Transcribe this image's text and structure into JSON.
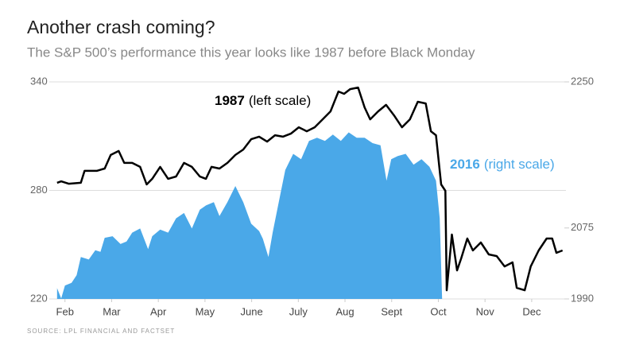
{
  "chart_data": {
    "type": "line",
    "title": "Another crash coming?",
    "subtitle": "The S&P 500’s performance this year looks like 1987 before Black Monday",
    "source": "SOURCE: LPL FINANCIAL AND FACTSET",
    "xlim": [
      0.8,
      11.7
    ],
    "xticks": [
      {
        "value": 1,
        "label": "Feb"
      },
      {
        "value": 2,
        "label": "Mar"
      },
      {
        "value": 3,
        "label": "Apr"
      },
      {
        "value": 4,
        "label": "May"
      },
      {
        "value": 5,
        "label": "June"
      },
      {
        "value": 6,
        "label": "July"
      },
      {
        "value": 7,
        "label": "Aug"
      },
      {
        "value": 8,
        "label": "Sept"
      },
      {
        "value": 9,
        "label": "Oct"
      },
      {
        "value": 10,
        "label": "Nov"
      },
      {
        "value": 11,
        "label": "Dec"
      }
    ],
    "ylim": [
      220,
      340
    ],
    "yticks": [
      220,
      280,
      340
    ],
    "y2lim": [
      1990,
      2250
    ],
    "y2ticks": [
      1990,
      2075,
      2250
    ],
    "grid": true,
    "series": [
      {
        "name": "2016",
        "annotation": "(right scale)",
        "color": "#4aa8e8",
        "axis": "y2",
        "fill": true,
        "x": [
          0.83,
          0.92,
          1.0,
          1.14,
          1.25,
          1.34,
          1.51,
          1.65,
          1.76,
          1.85,
          2.02,
          2.19,
          2.32,
          2.44,
          2.61,
          2.78,
          2.87,
          3.04,
          3.21,
          3.38,
          3.55,
          3.72,
          3.89,
          4.02,
          4.19,
          4.31,
          4.48,
          4.65,
          4.82,
          4.99,
          5.16,
          5.24,
          5.36,
          5.45,
          5.58,
          5.72,
          5.89,
          6.06,
          6.23,
          6.4,
          6.57,
          6.74,
          6.91,
          7.08,
          7.25,
          7.42,
          7.59,
          7.76,
          7.89,
          7.99,
          8.13,
          8.3,
          8.47,
          8.64,
          8.81,
          8.95,
          9.03,
          9.08
        ],
        "values": [
          2003.0,
          1990.6,
          2006.1,
          2009.2,
          2018.5,
          2040.3,
          2037.2,
          2048.3,
          2046.5,
          2063.2,
          2065.1,
          2055.8,
          2058.9,
          2069.4,
          2074.4,
          2049.6,
          2065.1,
          2073.1,
          2069.4,
          2086.6,
          2093.0,
          2074.4,
          2096.9,
          2102.0,
          2105.9,
          2089.2,
          2105.9,
          2125.2,
          2105.9,
          2080.1,
          2071.3,
          2062.0,
          2040.3,
          2069.4,
          2105.9,
          2144.5,
          2163.8,
          2157.4,
          2179.2,
          2183.1,
          2179.2,
          2187.0,
          2179.2,
          2189.5,
          2183.1,
          2183.1,
          2176.7,
          2174.1,
          2131.6,
          2157.4,
          2161.2,
          2163.8,
          2150.9,
          2157.4,
          2148.3,
          2131.6,
          2086.6,
          1990
        ]
      },
      {
        "name": "1987",
        "annotation": "(left scale)",
        "color": "#000000",
        "axis": "y",
        "x": [
          0.83,
          0.92,
          1.08,
          1.34,
          1.42,
          1.68,
          1.85,
          1.98,
          2.15,
          2.27,
          2.44,
          2.61,
          2.75,
          2.87,
          3.04,
          3.21,
          3.38,
          3.55,
          3.72,
          3.89,
          4.02,
          4.14,
          4.31,
          4.48,
          4.65,
          4.82,
          4.99,
          5.16,
          5.33,
          5.5,
          5.67,
          5.84,
          6.01,
          6.18,
          6.35,
          6.52,
          6.69,
          6.86,
          6.98,
          7.11,
          7.28,
          7.42,
          7.54,
          7.71,
          7.88,
          8.05,
          8.22,
          8.39,
          8.56,
          8.73,
          8.84,
          8.95,
          9.06,
          9.15,
          9.18,
          9.29,
          9.4,
          9.49,
          9.62,
          9.74,
          9.91,
          10.08,
          10.25,
          10.42,
          10.59,
          10.68,
          10.85,
          10.98,
          11.15,
          11.32,
          11.44,
          11.53,
          11.66
        ],
        "values": [
          284.2,
          285.0,
          283.7,
          284.2,
          290.8,
          290.8,
          292.1,
          299.6,
          301.8,
          295.2,
          295.2,
          293.0,
          283.3,
          286.4,
          293.0,
          286.4,
          287.7,
          295.2,
          293.0,
          287.7,
          286.4,
          293.0,
          292.1,
          295.2,
          299.6,
          302.6,
          308.3,
          309.7,
          307.0,
          310.5,
          309.7,
          311.4,
          314.9,
          312.7,
          314.9,
          319.3,
          323.7,
          334.7,
          333.4,
          336.0,
          336.9,
          325.9,
          319.3,
          323.7,
          327.3,
          321.5,
          314.9,
          319.3,
          329.0,
          328.1,
          312.7,
          310.5,
          283.3,
          279.8,
          224.8,
          255.6,
          235.8,
          242.4,
          253.4,
          246.8,
          251.2,
          244.6,
          243.7,
          238.0,
          240.2,
          226.1,
          224.8,
          238.0,
          246.8,
          253.4,
          253.4,
          245.5,
          246.8
        ]
      }
    ]
  }
}
